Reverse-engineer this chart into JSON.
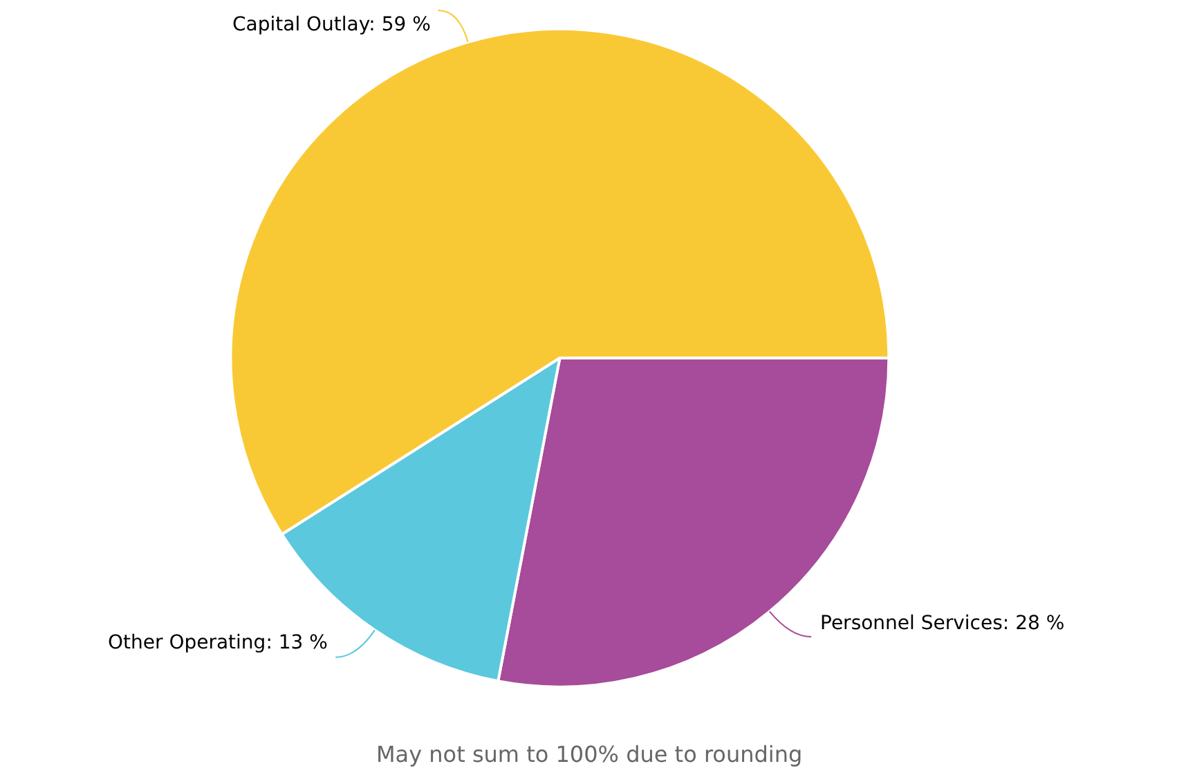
{
  "chart_data": {
    "type": "pie",
    "categories": [
      "Personnel Services",
      "Other Operating",
      "Capital Outlay"
    ],
    "values": [
      28,
      13,
      59
    ],
    "colors": [
      "#a74b9b",
      "#5bc8dd",
      "#f9c935"
    ],
    "value_labels": [
      "28 %",
      "13 %",
      "59 %"
    ],
    "annotations": [
      "May not sum to 100% due to rounding"
    ],
    "legend": false
  }
}
